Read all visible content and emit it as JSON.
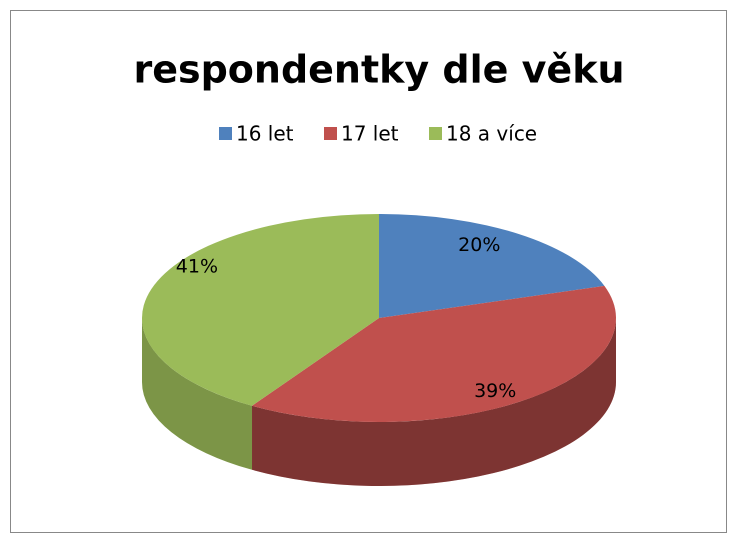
{
  "chart_data": {
    "type": "pie",
    "title": "respondentky dle věku",
    "categories": [
      "16 let",
      "17 let",
      "18 a více"
    ],
    "values": [
      20,
      39,
      41
    ],
    "value_labels": [
      "20%",
      "39%",
      "41%"
    ],
    "colors": [
      "#4f81bd",
      "#c0504d",
      "#9bbb59"
    ],
    "legend": "top"
  }
}
